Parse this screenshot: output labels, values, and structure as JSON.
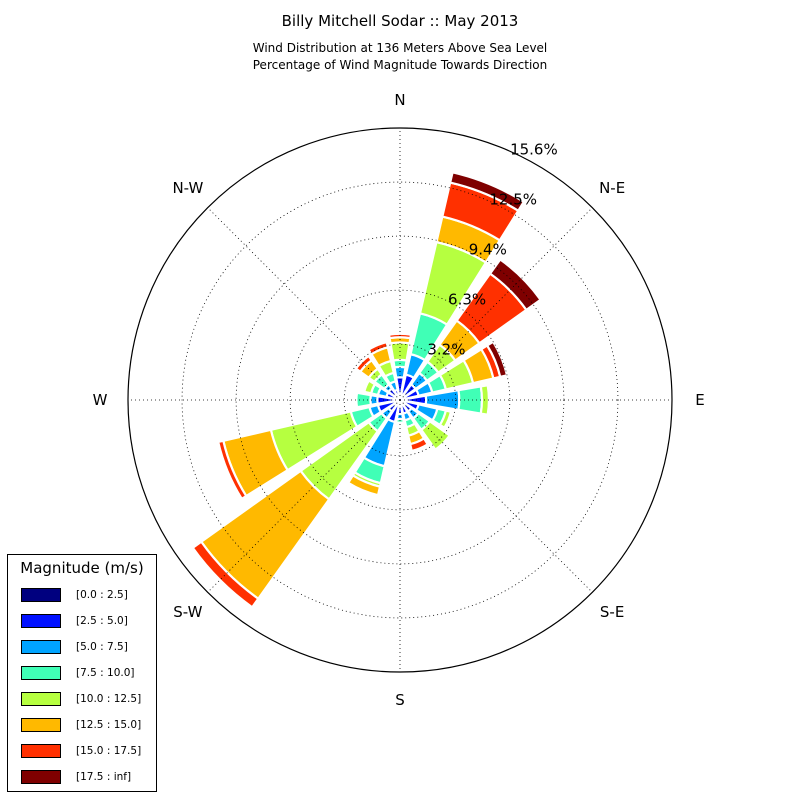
{
  "chart_data": {
    "type": "windrose",
    "title": "Billy Mitchell Sodar :: May 2013",
    "subtitle_lines": [
      "Wind Distribution at 136 Meters Above Sea Level",
      "Percentage of Wind Magnitude Towards Direction"
    ],
    "directions": [
      "N",
      "N-E",
      "E",
      "S-E",
      "S",
      "S-W",
      "W",
      "N-W"
    ],
    "rlim": [
      0,
      15.6
    ],
    "rings": [
      3.2,
      6.3,
      9.4,
      12.5,
      15.6
    ],
    "ring_labels": [
      "3.2%",
      "6.3%",
      "9.4%",
      "12.5%",
      "15.6%"
    ],
    "grid": true,
    "legend": {
      "title": "Magnitude (m/s)",
      "placement": "lower-left",
      "items": [
        {
          "label": "[0.0 : 2.5]",
          "color": "#00007f"
        },
        {
          "label": "[2.5 : 5.0]",
          "color": "#0010ff"
        },
        {
          "label": "[5.0 : 7.5]",
          "color": "#00a4ff"
        },
        {
          "label": "[7.5 : 10.0]",
          "color": "#40ffb6"
        },
        {
          "label": "[10.0 : 12.5]",
          "color": "#b6ff40"
        },
        {
          "label": "[12.5 : 15.0]",
          "color": "#ffb900"
        },
        {
          "label": "[15.0 : 17.5]",
          "color": "#ff3000"
        },
        {
          "label": "[17.5 : inf]",
          "color": "#7f0000"
        }
      ]
    },
    "bins_by_direction_deg": [
      {
        "dir": 0,
        "cumulative": [
          0.3,
          1.3,
          1.9,
          2.3,
          3.3,
          3.6,
          3.8,
          3.8
        ]
      },
      {
        "dir": 22.5,
        "cumulative": [
          0.3,
          1.5,
          2.7,
          5.1,
          9.3,
          10.8,
          12.8,
          13.4
        ]
      },
      {
        "dir": 45,
        "cumulative": [
          0.3,
          1.1,
          1.9,
          2.7,
          3.9,
          5.6,
          8.9,
          9.9
        ]
      },
      {
        "dir": 67.5,
        "cumulative": [
          0.3,
          1.1,
          1.9,
          2.7,
          4.3,
          5.5,
          5.9,
          6.3
        ]
      },
      {
        "dir": 90,
        "cumulative": [
          0.3,
          1.5,
          3.4,
          4.7,
          5.1,
          5.1,
          5.1,
          5.1
        ]
      },
      {
        "dir": 112.5,
        "cumulative": [
          0.3,
          1.1,
          2.2,
          2.7,
          3.0,
          3.0,
          3.0,
          3.0
        ]
      },
      {
        "dir": 135,
        "cumulative": [
          0.3,
          0.8,
          1.3,
          2.1,
          3.5,
          3.5,
          3.5,
          3.5
        ]
      },
      {
        "dir": 157.5,
        "cumulative": [
          0.3,
          0.8,
          1.2,
          1.6,
          2.1,
          2.6,
          3.0,
          3.0
        ]
      },
      {
        "dir": 180,
        "cumulative": [
          0.3,
          0.8,
          1.1,
          1.3,
          1.3,
          1.3,
          1.3,
          1.3
        ]
      },
      {
        "dir": 202.5,
        "cumulative": [
          0.3,
          1.3,
          3.9,
          4.9,
          5.1,
          5.6,
          5.6,
          5.6
        ]
      },
      {
        "dir": 225,
        "cumulative": [
          0.3,
          0.8,
          1.3,
          2.2,
          7.0,
          14.0,
          14.6,
          14.6
        ]
      },
      {
        "dir": 247.5,
        "cumulative": [
          0.3,
          1.3,
          1.8,
          2.9,
          7.6,
          10.4,
          10.7,
          10.7
        ]
      },
      {
        "dir": 270,
        "cumulative": [
          0.3,
          1.3,
          1.7,
          2.5,
          2.5,
          2.5,
          2.5,
          2.5
        ]
      },
      {
        "dir": 292.5,
        "cumulative": [
          0.3,
          0.8,
          1.3,
          1.7,
          2.1,
          2.1,
          2.1,
          2.1
        ]
      },
      {
        "dir": 315,
        "cumulative": [
          0.3,
          0.8,
          1.1,
          1.8,
          2.2,
          2.8,
          3.1,
          3.1
        ]
      },
      {
        "dir": 337.5,
        "cumulative": [
          0.3,
          0.6,
          1.1,
          1.6,
          2.3,
          3.1,
          3.4,
          3.4
        ]
      }
    ]
  }
}
